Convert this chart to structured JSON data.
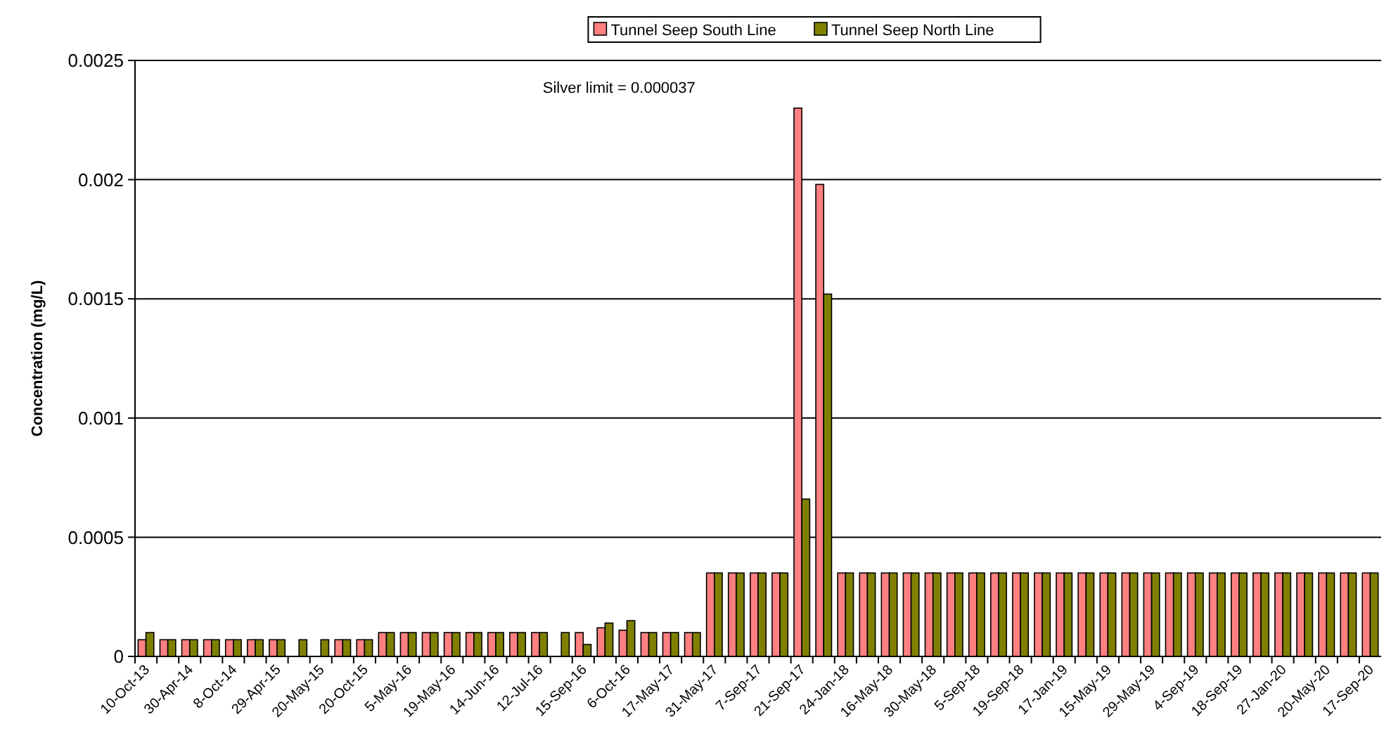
{
  "chart_data": {
    "type": "bar",
    "ylabel": "Concentration (mg/L)",
    "annotations": [
      "Silver limit = 0.000037"
    ],
    "categories": [
      "10-Oct-13",
      null,
      "30-Apr-14",
      null,
      "8-Oct-14",
      null,
      "29-Apr-15",
      null,
      "20-May-15",
      null,
      "20-Oct-15",
      null,
      "5-May-16",
      null,
      "19-May-16",
      null,
      "14-Jun-16",
      null,
      "12-Jul-16",
      null,
      "15-Sep-16",
      null,
      "6-Oct-16",
      null,
      "17-May-17",
      null,
      "31-May-17",
      null,
      "7-Sep-17",
      null,
      "21-Sep-17",
      null,
      "24-Jan-18",
      null,
      "16-May-18",
      null,
      "30-May-18",
      null,
      "5-Sep-18",
      null,
      "19-Sep-18",
      null,
      "17-Jan-19",
      null,
      "15-May-19",
      null,
      "29-May-19",
      null,
      "4-Sep-19",
      null,
      "18-Sep-19",
      null,
      "27-Jan-20",
      null,
      "20-May-20",
      null,
      "17-Sep-20"
    ],
    "series": [
      {
        "name": "Tunnel Seep South Line",
        "color": "#ff8080",
        "values": [
          7e-05,
          7e-05,
          7e-05,
          7e-05,
          7e-05,
          7e-05,
          7e-05,
          null,
          null,
          7e-05,
          7e-05,
          0.0001,
          0.0001,
          0.0001,
          0.0001,
          0.0001,
          0.0001,
          0.0001,
          0.0001,
          null,
          0.0001,
          0.00012,
          0.00011,
          0.0001,
          0.0001,
          0.0001,
          0.00035,
          0.00035,
          0.00035,
          0.00035,
          0.0023,
          0.00198,
          0.00035,
          0.00035,
          0.00035,
          0.00035,
          0.00035,
          0.00035,
          0.00035,
          0.00035,
          0.00035,
          0.00035,
          0.00035,
          0.00035,
          0.00035,
          0.00035,
          0.00035,
          0.00035,
          0.00035,
          0.00035,
          0.00035,
          0.00035,
          0.00035,
          0.00035,
          0.00035,
          0.00035,
          0.00035
        ]
      },
      {
        "name": "Tunnel Seep North Line",
        "color": "#808000",
        "values": [
          0.0001,
          7e-05,
          7e-05,
          7e-05,
          7e-05,
          7e-05,
          7e-05,
          7e-05,
          7e-05,
          7e-05,
          7e-05,
          0.0001,
          0.0001,
          0.0001,
          0.0001,
          0.0001,
          0.0001,
          0.0001,
          0.0001,
          0.0001,
          5e-05,
          0.00014,
          0.00015,
          0.0001,
          0.0001,
          0.0001,
          0.00035,
          0.00035,
          0.00035,
          0.00035,
          0.00066,
          0.00152,
          0.00035,
          0.00035,
          0.00035,
          0.00035,
          0.00035,
          0.00035,
          0.00035,
          0.00035,
          0.00035,
          0.00035,
          0.00035,
          0.00035,
          0.00035,
          0.00035,
          0.00035,
          0.00035,
          0.00035,
          0.00035,
          0.00035,
          0.00035,
          0.00035,
          0.00035,
          0.00035,
          0.00035,
          0.00035
        ]
      }
    ],
    "ylim": [
      0,
      0.0025
    ],
    "yticks": [
      0,
      0.0005,
      0.001,
      0.0015,
      0.002,
      0.0025
    ],
    "grid": "y",
    "legend": "top"
  }
}
